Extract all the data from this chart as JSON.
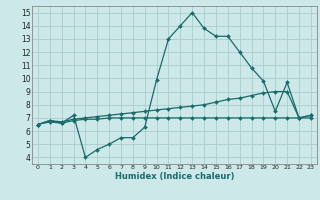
{
  "title": "",
  "xlabel": "Humidex (Indice chaleur)",
  "bg_color": "#cce8e8",
  "grid_color": "#aacccc",
  "line_color": "#1a6b6b",
  "xlim": [
    -0.5,
    23.5
  ],
  "ylim": [
    3.5,
    15.5
  ],
  "xticks": [
    0,
    1,
    2,
    3,
    4,
    5,
    6,
    7,
    8,
    9,
    10,
    11,
    12,
    13,
    14,
    15,
    16,
    17,
    18,
    19,
    20,
    21,
    22,
    23
  ],
  "yticks": [
    4,
    5,
    6,
    7,
    8,
    9,
    10,
    11,
    12,
    13,
    14,
    15
  ],
  "line1_x": [
    0,
    1,
    2,
    3,
    4,
    5,
    6,
    7,
    8,
    9,
    10,
    11,
    12,
    13,
    14,
    15,
    16,
    17,
    18,
    19,
    20,
    21,
    22,
    23
  ],
  "line1_y": [
    6.5,
    6.8,
    6.6,
    7.2,
    4.0,
    4.6,
    5.0,
    5.5,
    5.5,
    6.3,
    9.9,
    13.0,
    14.0,
    15.0,
    13.8,
    13.2,
    13.2,
    12.0,
    10.8,
    9.8,
    7.5,
    9.7,
    7.0,
    7.2
  ],
  "line2_x": [
    0,
    1,
    2,
    3,
    4,
    5,
    6,
    7,
    8,
    9,
    10,
    11,
    12,
    13,
    14,
    15,
    16,
    17,
    18,
    19,
    20,
    21,
    22,
    23
  ],
  "line2_y": [
    6.5,
    6.8,
    6.7,
    6.9,
    7.0,
    7.1,
    7.2,
    7.3,
    7.4,
    7.5,
    7.6,
    7.7,
    7.8,
    7.9,
    8.0,
    8.2,
    8.4,
    8.5,
    8.7,
    8.9,
    9.0,
    9.0,
    7.0,
    7.2
  ],
  "line3_x": [
    0,
    1,
    2,
    3,
    4,
    5,
    6,
    7,
    8,
    9,
    10,
    11,
    12,
    13,
    14,
    15,
    16,
    17,
    18,
    19,
    20,
    21,
    22,
    23
  ],
  "line3_y": [
    6.5,
    6.7,
    6.6,
    6.8,
    6.9,
    6.9,
    7.0,
    7.0,
    7.0,
    7.0,
    7.0,
    7.0,
    7.0,
    7.0,
    7.0,
    7.0,
    7.0,
    7.0,
    7.0,
    7.0,
    7.0,
    7.0,
    7.0,
    7.0
  ]
}
